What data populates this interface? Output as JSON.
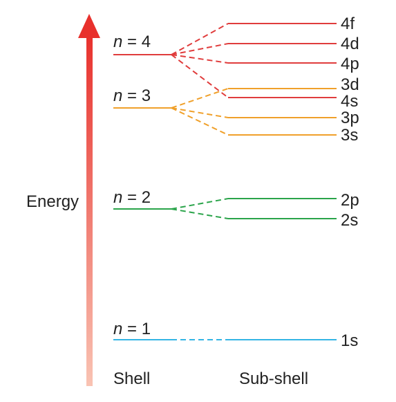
{
  "diagram": {
    "axis_label": "Energy",
    "column_shell": "Shell",
    "column_subshell": "Sub-shell",
    "arrow_colors": {
      "top": "#e8302c",
      "bottom": "#f9c3b3"
    },
    "shells": [
      {
        "var": "n",
        "rel": " = 4",
        "color": "#e03c3c",
        "subshells": [
          "4f",
          "4d",
          "4p"
        ]
      },
      {
        "var": "n",
        "rel": " = 3",
        "color": "#f0a02a",
        "subshells": [
          "3d",
          "3p",
          "3s"
        ]
      },
      {
        "var": "n",
        "rel": " = 2",
        "color": "#2aa44a",
        "subshells": [
          "2p",
          "2s"
        ]
      },
      {
        "var": "n",
        "rel": " = 1",
        "color": "#33b5e5",
        "subshells": [
          "1s"
        ]
      }
    ],
    "extra_subshell": {
      "label": "4s",
      "color": "#e03c3c"
    }
  }
}
